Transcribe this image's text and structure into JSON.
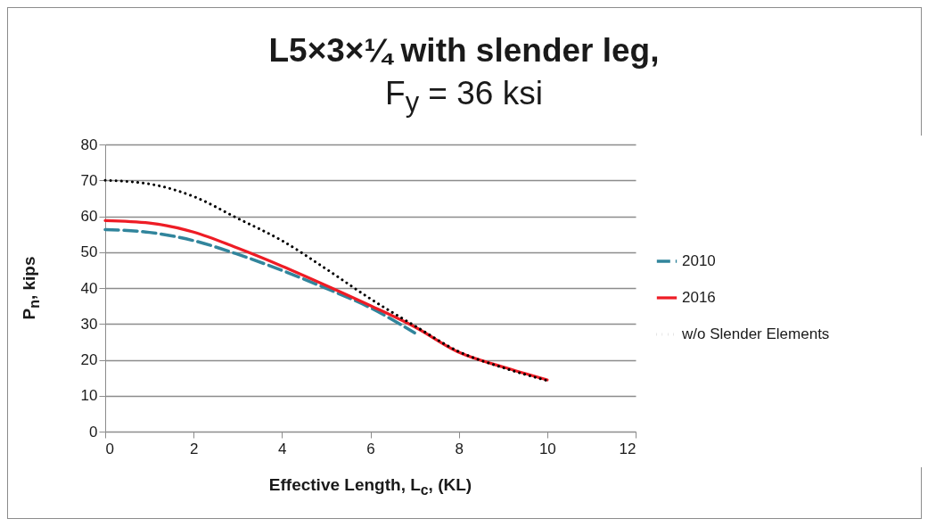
{
  "chart_data": {
    "type": "line",
    "title": "L5×3×¼  with slender leg,",
    "subtitle": "F$_{y}$ = 36 ksi",
    "xlabel": "Effective Length, L$_{c}$, (KL)",
    "ylabel": "P$_{n}$, kips",
    "x": [
      0,
      1,
      2,
      3,
      4,
      5,
      6,
      7,
      8,
      9,
      10
    ],
    "series": [
      {
        "name": "2010",
        "color": "#31859c",
        "line_style": "dashed",
        "values": [
          56.3,
          55.5,
          53.2,
          49.4,
          44.9,
          39.9,
          34.5,
          27.5,
          null,
          null,
          null
        ]
      },
      {
        "name": "2016",
        "color": "#ee1c25",
        "line_style": "solid",
        "values": [
          58.8,
          58.1,
          55.6,
          51.1,
          46.1,
          40.7,
          35.1,
          29.2,
          22.1,
          18.0,
          14.4
        ]
      },
      {
        "name": "w/o Slender Elements",
        "color": "#000000",
        "line_style": "dotted",
        "values": [
          70,
          69,
          65.5,
          59.4,
          53.2,
          45.3,
          37,
          29.5,
          22.3,
          17.8,
          14.2
        ]
      }
    ],
    "xlim": [
      0,
      12
    ],
    "xticks": [
      0,
      2,
      4,
      6,
      8,
      10,
      12
    ],
    "ylim": [
      0,
      80
    ],
    "yticks": [
      0,
      10,
      20,
      30,
      40,
      50,
      60,
      70,
      80
    ],
    "grid": "y",
    "legend": "right",
    "marker": "none"
  }
}
